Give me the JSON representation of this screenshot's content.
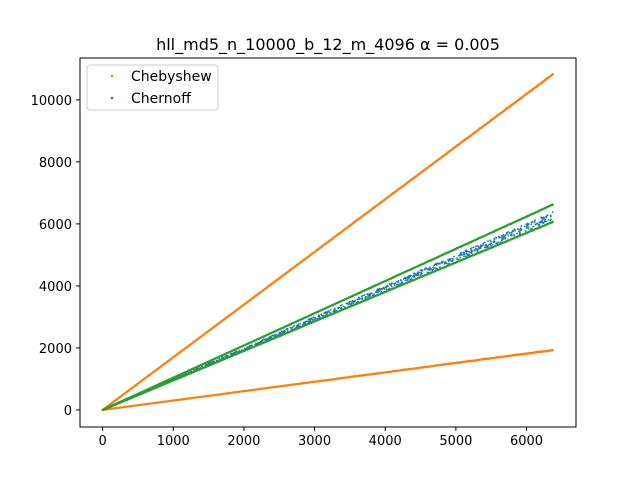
{
  "chart_data": {
    "type": "scatter",
    "title": "hll_md5_n_10000_b_12_m_4096 α = 0.005",
    "xlabel": "",
    "ylabel": "",
    "xlim": [
      -320,
      6700
    ],
    "ylim": [
      -550,
      11350
    ],
    "x_ticks": [
      0,
      1000,
      2000,
      3000,
      4000,
      5000,
      6000
    ],
    "y_ticks": [
      0,
      2000,
      4000,
      6000,
      8000,
      10000
    ],
    "grid": false,
    "legend": {
      "position": "top-left",
      "entries": [
        "Chebyshew",
        "Chernoff"
      ]
    },
    "series": [
      {
        "name": "Chebyshew",
        "color": "#ff7f0e",
        "marker": "point",
        "bands": [
          {
            "x": [
              0,
              6370
            ],
            "y": [
              0,
              10820
            ]
          },
          {
            "x": [
              0,
              6370
            ],
            "y": [
              0,
              1930
            ]
          }
        ]
      },
      {
        "name": "Chernoff",
        "color": "#1f77b4",
        "marker": "point",
        "trend": {
          "x": [
            0,
            6370
          ],
          "y": [
            0,
            6250
          ]
        }
      },
      {
        "color": "#2ca02c",
        "marker": "point",
        "bands": [
          {
            "x": [
              0,
              6370
            ],
            "y": [
              0,
              6620
            ]
          },
          {
            "x": [
              0,
              6370
            ],
            "y": [
              0,
              6060
            ]
          }
        ]
      }
    ]
  }
}
